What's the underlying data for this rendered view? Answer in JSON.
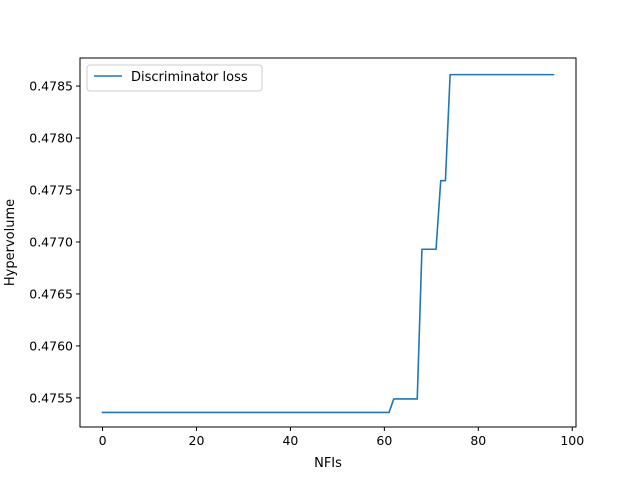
{
  "chart_data": {
    "type": "line",
    "title": "",
    "xlabel": "NFIs",
    "ylabel": "Hypervolume",
    "xlim": [
      -4.8,
      100.8
    ],
    "ylim": [
      0.47522,
      0.47877
    ],
    "xticks": [
      0,
      20,
      40,
      60,
      80,
      100
    ],
    "xtick_labels": [
      "0",
      "20",
      "40",
      "60",
      "80",
      "100"
    ],
    "yticks": [
      0.4755,
      0.476,
      0.4765,
      0.477,
      0.4775,
      0.478,
      0.4785
    ],
    "ytick_labels": [
      "0.4755",
      "0.4760",
      "0.4765",
      "0.4770",
      "0.4775",
      "0.4780",
      "0.4785"
    ],
    "grid": false,
    "legend_position": "upper-left",
    "colors": {
      "series": "#1f77b4"
    },
    "series": [
      {
        "name": "Discriminator loss",
        "x": [
          0,
          61,
          62,
          67,
          68,
          71,
          72,
          73,
          74,
          96
        ],
        "y": [
          0.47536,
          0.47536,
          0.47549,
          0.47549,
          0.47693,
          0.47693,
          0.47759,
          0.47759,
          0.47861,
          0.47861
        ]
      }
    ]
  }
}
